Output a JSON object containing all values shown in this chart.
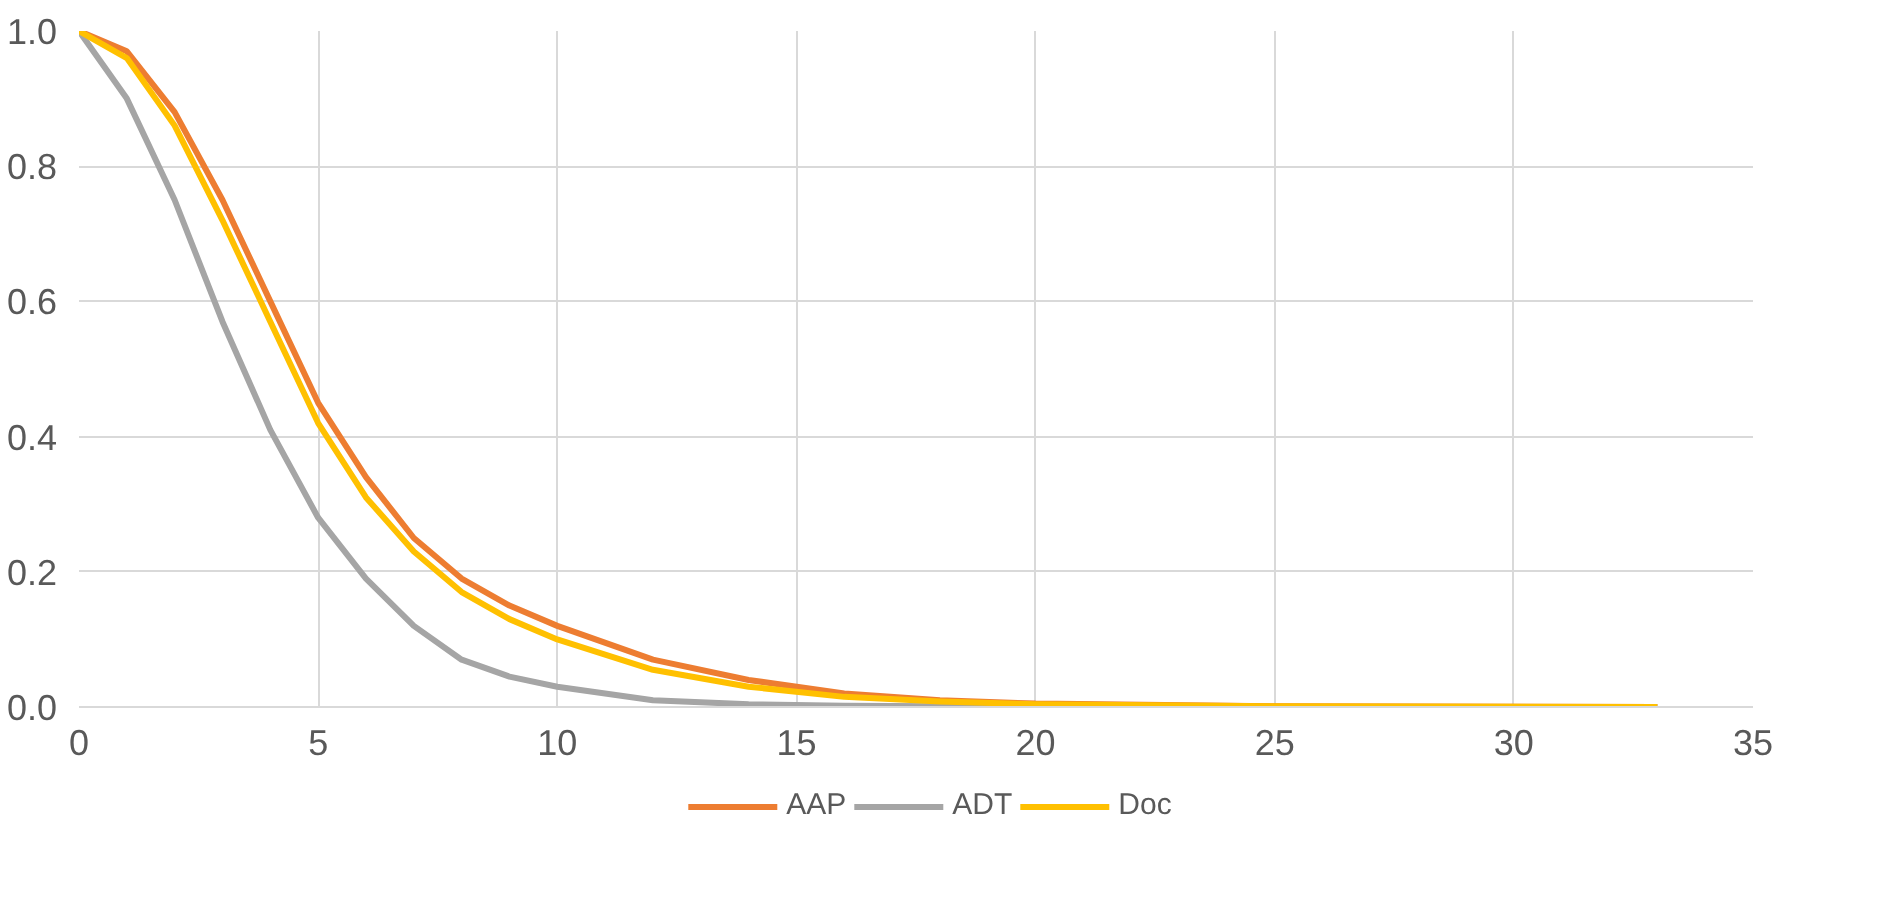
{
  "chart_data": {
    "type": "line",
    "x": [
      0,
      1,
      2,
      3,
      4,
      5,
      6,
      7,
      8,
      9,
      10,
      12,
      14,
      16,
      18,
      20,
      25,
      33
    ],
    "series": [
      {
        "name": "AAP",
        "color": "#ed7d31",
        "values": [
          1,
          0.97,
          0.88,
          0.75,
          0.6,
          0.45,
          0.34,
          0.25,
          0.19,
          0.15,
          0.12,
          0.07,
          0.04,
          0.02,
          0.01,
          0.005,
          0.001,
          0
        ]
      },
      {
        "name": "ADT",
        "color": "#a5a5a5",
        "values": [
          1,
          0.9,
          0.75,
          0.57,
          0.41,
          0.28,
          0.19,
          0.12,
          0.07,
          0.045,
          0.03,
          0.01,
          0.004,
          0.002,
          0.001,
          0,
          0,
          0
        ]
      },
      {
        "name": "Doc",
        "color": "#ffc000",
        "values": [
          1,
          0.96,
          0.86,
          0.72,
          0.57,
          0.42,
          0.31,
          0.23,
          0.17,
          0.13,
          0.1,
          0.055,
          0.03,
          0.015,
          0.008,
          0.004,
          0.001,
          0
        ]
      }
    ],
    "xlim": [
      0,
      35
    ],
    "xticks": [
      0,
      5,
      10,
      15,
      20,
      25,
      30,
      35
    ],
    "ylim": [
      0,
      1
    ],
    "yticks": [
      {
        "value": 0,
        "label": "0.0"
      },
      {
        "value": 0.2,
        "label": "0.2"
      },
      {
        "value": 0.4,
        "label": "0.4"
      },
      {
        "value": 0.6,
        "label": "0.6"
      },
      {
        "value": 0.8,
        "label": "0.8"
      },
      {
        "value": 1,
        "label": "1.0"
      }
    ],
    "grid": true,
    "legend": "bottom",
    "marker": "none",
    "line_style": "solid"
  }
}
